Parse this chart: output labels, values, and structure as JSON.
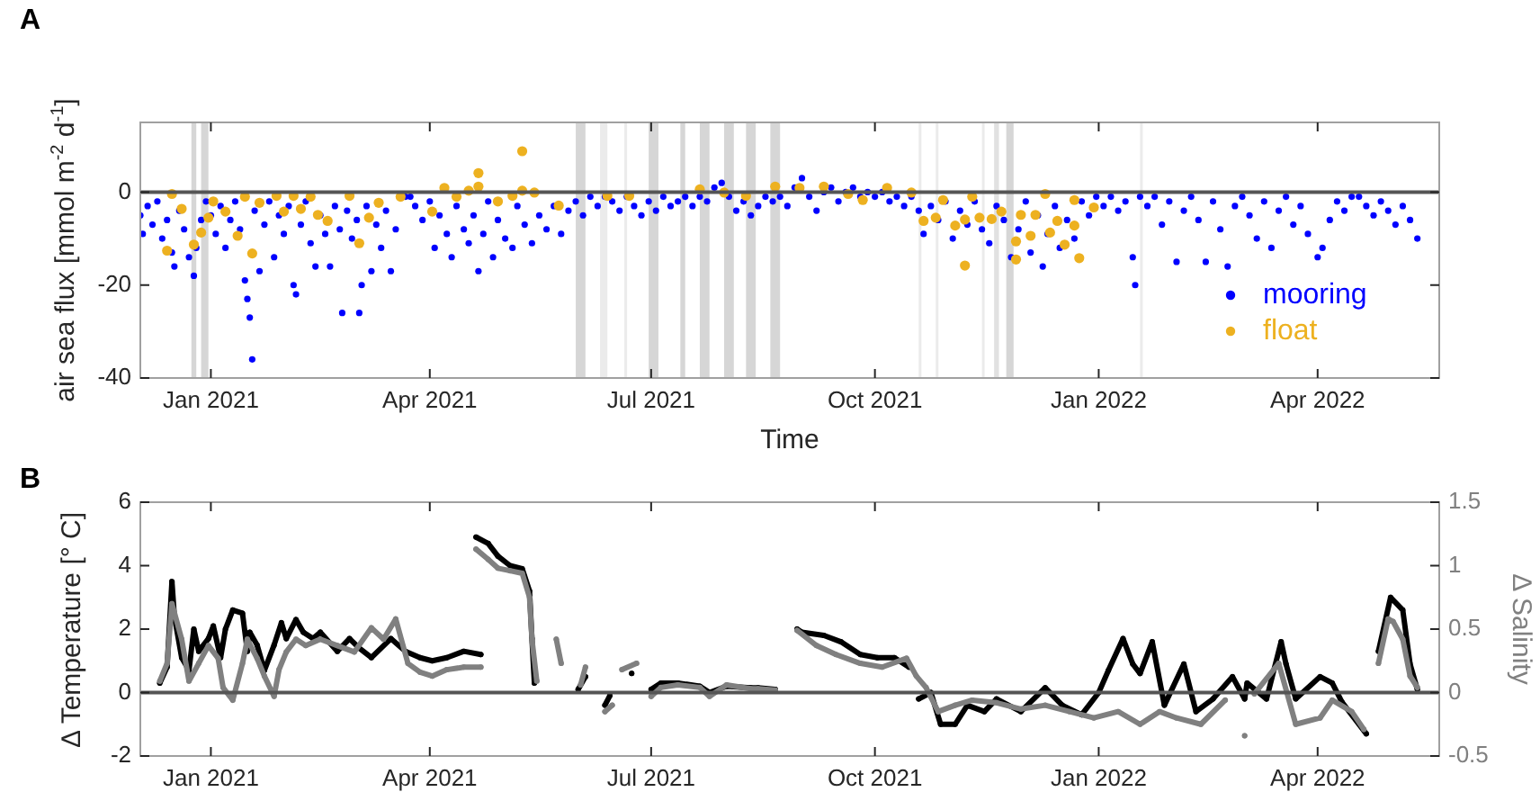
{
  "chart_data": [
    {
      "type": "scatter",
      "title": "A",
      "xlabel": "Time",
      "ylabel": "air sea flux [mmol m$^{-2}$ d$^{-1}$]",
      "xlim": [
        "2020-12-03",
        "2022-05-21"
      ],
      "ylim": [
        -40,
        15
      ],
      "xticks": [
        {
          "value": "2021-01-01",
          "label": "Jan 2021"
        },
        {
          "value": "2021-04-01",
          "label": "Apr 2021"
        },
        {
          "value": "2021-07-01",
          "label": "Jul 2021"
        },
        {
          "value": "2021-10-01",
          "label": "Oct 2021"
        },
        {
          "value": "2022-01-01",
          "label": "Jan 2022"
        },
        {
          "value": "2022-04-01",
          "label": "Apr 2022"
        }
      ],
      "yticks": [
        -40,
        -20,
        0
      ],
      "legend": "bottom right",
      "marker": "circle",
      "ref_lines": [
        {
          "axis": "y",
          "value": 0,
          "color": "#555555"
        }
      ],
      "bands": [
        {
          "axis": "x",
          "from": "2020-12-24",
          "to": "2020-12-26",
          "color": "#cccccc"
        },
        {
          "axis": "x",
          "from": "2020-12-28",
          "to": "2020-12-31",
          "color": "#cccccc"
        },
        {
          "axis": "x",
          "from": "2021-05-31",
          "to": "2021-06-04",
          "color": "#cccccc"
        },
        {
          "axis": "x",
          "from": "2021-06-10",
          "to": "2021-06-13",
          "color": "#e6e6e6"
        },
        {
          "axis": "x",
          "from": "2021-06-20",
          "to": "2021-06-21",
          "color": "#e6e6e6"
        },
        {
          "axis": "x",
          "from": "2021-06-30",
          "to": "2021-07-04",
          "color": "#cccccc"
        },
        {
          "axis": "x",
          "from": "2021-07-13",
          "to": "2021-07-15",
          "color": "#cccccc"
        },
        {
          "axis": "x",
          "from": "2021-07-21",
          "to": "2021-07-25",
          "color": "#cccccc"
        },
        {
          "axis": "x",
          "from": "2021-07-31",
          "to": "2021-08-04",
          "color": "#cccccc"
        },
        {
          "axis": "x",
          "from": "2021-08-09",
          "to": "2021-08-13",
          "color": "#cccccc"
        },
        {
          "axis": "x",
          "from": "2021-08-19",
          "to": "2021-08-23",
          "color": "#cccccc"
        },
        {
          "axis": "x",
          "from": "2021-10-19",
          "to": "2021-10-20",
          "color": "#e6e6e6"
        },
        {
          "axis": "x",
          "from": "2021-10-26",
          "to": "2021-10-27",
          "color": "#e6e6e6"
        },
        {
          "axis": "x",
          "from": "2021-11-14",
          "to": "2021-11-15",
          "color": "#e6e6e6"
        },
        {
          "axis": "x",
          "from": "2021-11-19",
          "to": "2021-11-21",
          "color": "#d9d9d9"
        },
        {
          "axis": "x",
          "from": "2021-11-24",
          "to": "2021-11-27",
          "color": "#cccccc"
        },
        {
          "axis": "x",
          "from": "2022-01-18",
          "to": "2022-01-19",
          "color": "#e6e6e6"
        }
      ],
      "series": [
        {
          "name": "mooring",
          "color": "#0000ff",
          "x": [
            "2020-12-03",
            "2020-12-04",
            "2020-12-06",
            "2020-12-08",
            "2020-12-10",
            "2020-12-12",
            "2020-12-14",
            "2020-12-16",
            "2020-12-17",
            "2020-12-19",
            "2020-12-21",
            "2020-12-23",
            "2020-12-25",
            "2020-12-26",
            "2020-12-28",
            "2020-12-30",
            "2021-01-01",
            "2021-01-03",
            "2021-01-05",
            "2021-01-07",
            "2021-01-09",
            "2021-01-11",
            "2021-01-13",
            "2021-01-15",
            "2021-01-16",
            "2021-01-17",
            "2021-01-18",
            "2021-01-19",
            "2021-01-21",
            "2021-01-23",
            "2021-01-25",
            "2021-01-27",
            "2021-01-29",
            "2021-01-31",
            "2021-02-02",
            "2021-02-04",
            "2021-02-05",
            "2021-02-07",
            "2021-02-09",
            "2021-02-11",
            "2021-02-13",
            "2021-02-15",
            "2021-02-17",
            "2021-02-19",
            "2021-02-21",
            "2021-02-23",
            "2021-02-24",
            "2021-02-26",
            "2021-02-28",
            "2021-03-02",
            "2021-03-03",
            "2021-03-04",
            "2021-03-06",
            "2021-03-08",
            "2021-03-10",
            "2021-03-12",
            "2021-03-14",
            "2021-03-16",
            "2021-03-18",
            "2021-03-22",
            "2021-03-24",
            "2021-03-26",
            "2021-03-29",
            "2021-04-01",
            "2021-04-03",
            "2021-04-05",
            "2021-04-08",
            "2021-04-10",
            "2021-04-12",
            "2021-04-15",
            "2021-04-17",
            "2021-04-19",
            "2021-04-21",
            "2021-04-23",
            "2021-04-25",
            "2021-04-27",
            "2021-04-29",
            "2021-05-02",
            "2021-05-05",
            "2021-05-07",
            "2021-05-10",
            "2021-05-13",
            "2021-05-16",
            "2021-05-19",
            "2021-05-22",
            "2021-05-25",
            "2021-05-28",
            "2021-05-31",
            "2021-06-03",
            "2021-06-06",
            "2021-06-09",
            "2021-06-12",
            "2021-06-15",
            "2021-06-18",
            "2021-06-21",
            "2021-06-24",
            "2021-06-27",
            "2021-06-30",
            "2021-07-03",
            "2021-07-06",
            "2021-07-09",
            "2021-07-12",
            "2021-07-15",
            "2021-07-18",
            "2021-07-21",
            "2021-07-24",
            "2021-07-27",
            "2021-07-30",
            "2021-08-02",
            "2021-08-05",
            "2021-08-08",
            "2021-08-11",
            "2021-08-14",
            "2021-08-17",
            "2021-08-20",
            "2021-08-23",
            "2021-08-26",
            "2021-08-29",
            "2021-09-01",
            "2021-09-04",
            "2021-09-07",
            "2021-09-10",
            "2021-09-13",
            "2021-09-16",
            "2021-09-19",
            "2021-09-22",
            "2021-09-25",
            "2021-09-28",
            "2021-10-01",
            "2021-10-04",
            "2021-10-07",
            "2021-10-10",
            "2021-10-13",
            "2021-10-16",
            "2021-10-19",
            "2021-10-21",
            "2021-10-24",
            "2021-10-27",
            "2021-10-30",
            "2021-11-02",
            "2021-11-05",
            "2021-11-08",
            "2021-11-11",
            "2021-11-14",
            "2021-11-17",
            "2021-11-20",
            "2021-11-23",
            "2021-11-26",
            "2021-11-29",
            "2021-12-02",
            "2021-12-04",
            "2021-12-07",
            "2021-12-09",
            "2021-12-11",
            "2021-12-14",
            "2021-12-16",
            "2021-12-19",
            "2021-12-22",
            "2021-12-25",
            "2021-12-28",
            "2021-12-31",
            "2022-01-03",
            "2022-01-06",
            "2022-01-09",
            "2022-01-12",
            "2022-01-15",
            "2022-01-16",
            "2022-01-18",
            "2022-01-21",
            "2022-01-24",
            "2022-01-27",
            "2022-01-30",
            "2022-02-02",
            "2022-02-05",
            "2022-02-08",
            "2022-02-11",
            "2022-02-14",
            "2022-02-17",
            "2022-02-20",
            "2022-02-23",
            "2022-02-26",
            "2022-03-01",
            "2022-03-04",
            "2022-03-07",
            "2022-03-10",
            "2022-03-13",
            "2022-03-16",
            "2022-03-19",
            "2022-03-22",
            "2022-03-25",
            "2022-03-28",
            "2022-04-01",
            "2022-04-03",
            "2022-04-06",
            "2022-04-09",
            "2022-04-12",
            "2022-04-15",
            "2022-04-18",
            "2022-04-21",
            "2022-04-24",
            "2022-04-27",
            "2022-04-30",
            "2022-05-03",
            "2022-05-06",
            "2022-05-09",
            "2022-05-12"
          ],
          "values": [
            -5,
            -9,
            -3,
            -7,
            -2,
            -10,
            -6,
            -13,
            -16,
            -4,
            -8,
            -14,
            -18,
            -12,
            -6,
            -2,
            -5,
            -9,
            -3,
            -12,
            -6,
            -2,
            -8,
            -19,
            -23,
            -27,
            -36,
            -4,
            -17,
            -7,
            -2,
            -14,
            -5,
            -9,
            -3,
            -20,
            -22,
            -7,
            -2,
            -11,
            -16,
            -5,
            -9,
            -16,
            -3,
            -8,
            -26,
            -4,
            -10,
            -6,
            -26,
            -20,
            -3,
            -17,
            -7,
            -12,
            -4,
            -17,
            -8,
            -1,
            -1,
            -3,
            -6,
            -2,
            -12,
            -5,
            -9,
            -14,
            -3,
            -8,
            -11,
            -5,
            -17,
            -9,
            -2,
            -14,
            -6,
            -10,
            -12,
            -3,
            -7,
            -11,
            -5,
            -8,
            -3,
            -9,
            -4,
            -2,
            -5,
            -1,
            -3,
            -1,
            -2,
            -4,
            -1,
            -3,
            -5,
            -2,
            -4,
            -1,
            -3,
            -2,
            -1,
            -3,
            -1,
            -2,
            1,
            2,
            -1,
            -4,
            -2,
            -5,
            -3,
            -1,
            -2,
            -1,
            -3,
            1,
            3,
            -1,
            -4,
            0,
            1,
            -2,
            0,
            1,
            -1,
            0,
            -1,
            0,
            -2,
            -1,
            -3,
            -1,
            -4,
            -9,
            -3,
            -6,
            -2,
            -10,
            -4,
            -7,
            -2,
            -8,
            -11,
            -3,
            -6,
            -14,
            -8,
            -2,
            -13,
            -5,
            -16,
            -9,
            -3,
            -12,
            -6,
            -10,
            -2,
            -5,
            -1,
            -3,
            -1,
            -4,
            -2,
            -14,
            -20,
            -1,
            -3,
            -1,
            -7,
            -2,
            -15,
            -4,
            -1,
            -6,
            -15,
            -2,
            -8,
            -16,
            -3,
            -1,
            -5,
            -10,
            -2,
            -12,
            -4,
            -1,
            -7,
            -3,
            -9,
            -14,
            -12,
            -6,
            -2,
            -4,
            -1,
            -1,
            -3,
            -5,
            -2,
            -4,
            -7,
            -3,
            -6,
            -10
          ]
        },
        {
          "name": "float",
          "color": "#edb120",
          "x": [
            "2020-12-14",
            "2020-12-16",
            "2020-12-20",
            "2020-12-25",
            "2020-12-28",
            "2020-12-31",
            "2021-01-02",
            "2021-01-07",
            "2021-01-12",
            "2021-01-15",
            "2021-01-18",
            "2021-01-21",
            "2021-01-28",
            "2021-01-31",
            "2021-02-04",
            "2021-02-07",
            "2021-02-11",
            "2021-02-14",
            "2021-02-18",
            "2021-02-27",
            "2021-03-03",
            "2021-03-07",
            "2021-03-11",
            "2021-03-20",
            "2021-04-02",
            "2021-04-07",
            "2021-04-12",
            "2021-04-17",
            "2021-04-21",
            "2021-04-21",
            "2021-04-29",
            "2021-05-05",
            "2021-05-09",
            "2021-05-09",
            "2021-05-14",
            "2021-05-24",
            "2021-06-13",
            "2021-06-22",
            "2021-07-21",
            "2021-07-31",
            "2021-08-09",
            "2021-08-21",
            "2021-08-31",
            "2021-09-10",
            "2021-09-20",
            "2021-09-26",
            "2021-10-06",
            "2021-10-16",
            "2021-10-21",
            "2021-10-26",
            "2021-10-29",
            "2021-11-03",
            "2021-11-07",
            "2021-11-07",
            "2021-11-10",
            "2021-11-13",
            "2021-11-18",
            "2021-11-22",
            "2021-11-28",
            "2021-11-28",
            "2021-11-30",
            "2021-12-04",
            "2021-12-06",
            "2021-12-10",
            "2021-12-12",
            "2021-12-15",
            "2021-12-18",
            "2021-12-22",
            "2021-12-22",
            "2021-12-24",
            "2021-12-30"
          ],
          "values": [
            -12.6,
            -0.4,
            -3.6,
            -11.3,
            -8.7,
            -5.5,
            -2,
            -4.2,
            -9.4,
            -1,
            -13.2,
            -2.3,
            -0.8,
            -4.2,
            -0.8,
            -3.6,
            -1,
            -4.9,
            -6.2,
            -0.8,
            -11,
            -5.5,
            -2.3,
            -1,
            -4.2,
            0.9,
            -1,
            0.3,
            4.1,
            1.2,
            -2,
            -0.8,
            8.8,
            0.3,
            -0.1,
            -2.9,
            -0.8,
            -0.8,
            0.6,
            -0.1,
            -0.8,
            1.2,
            0.9,
            1.2,
            -0.4,
            -1.7,
            0.9,
            -0.1,
            -6.2,
            -5.5,
            -1.7,
            -7.2,
            -15.8,
            -5.9,
            -1,
            -5.5,
            -5.8,
            -4.2,
            -10.6,
            -14.5,
            -4.9,
            -9.4,
            -4.9,
            -0.4,
            -8.7,
            -6.2,
            -11.3,
            -1.7,
            -7.2,
            -14.2,
            -3.3
          ]
        }
      ]
    },
    {
      "type": "line",
      "title": "B",
      "ylabel": "Δ Temperature [° C]",
      "y2label": "Δ Salinity",
      "xlim": [
        "2020-12-03",
        "2022-05-21"
      ],
      "ylim": [
        -2,
        6
      ],
      "y2lim": [
        -0.5,
        1.5
      ],
      "xticks": [
        {
          "value": "2021-01-01",
          "label": "Jan 2021"
        },
        {
          "value": "2021-04-01",
          "label": "Apr 2021"
        },
        {
          "value": "2021-07-01",
          "label": "Jul 2021"
        },
        {
          "value": "2021-10-01",
          "label": "Oct 2021"
        },
        {
          "value": "2022-01-01",
          "label": "Jan 2022"
        },
        {
          "value": "2022-04-01",
          "label": "Apr 2022"
        }
      ],
      "yticks": [
        -2,
        0,
        2,
        4,
        6
      ],
      "y2ticks": [
        -0.5,
        0,
        0.5,
        1,
        1.5
      ],
      "marker": "circle",
      "line_style": "solid",
      "ref_lines": [
        {
          "axis": "y",
          "value": 0,
          "color": "#555555"
        }
      ],
      "series": [
        {
          "color": "#000000",
          "x": [
            "2020-12-11",
            "2020-12-14",
            "2020-12-16",
            "2020-12-17",
            "2020-12-20",
            "2020-12-23",
            "2020-12-25",
            "2020-12-27",
            "2020-12-31",
            "2021-01-02",
            "2021-01-05",
            "2021-01-07",
            "2021-01-10",
            "2021-01-14",
            "2021-01-16",
            "2021-01-17",
            "2021-01-20",
            "2021-01-23",
            "2021-01-27",
            "2021-01-30",
            "2021-02-01",
            "2021-02-05",
            "2021-02-08",
            "2021-02-12",
            "2021-02-15",
            "2021-02-22",
            "2021-02-27",
            "2021-03-03",
            "2021-03-08",
            "2021-03-16",
            "2021-03-22",
            "2021-03-28",
            "2021-04-02",
            "2021-04-08",
            "2021-04-15",
            "2021-04-22",
            "2021-04-21",
            "2021-04-20",
            "2021-04-25",
            "2021-04-29",
            "2021-05-04",
            "2021-05-09",
            "2021-05-12",
            "2021-05-13",
            "2021-05-14",
            "2021-05-20",
            "2021-06-01",
            "2021-06-04",
            "2021-06-08",
            "2021-06-12",
            "2021-06-14",
            "2021-06-18",
            "2021-06-23",
            "2021-06-27",
            "2021-07-01",
            "2021-07-05",
            "2021-07-12",
            "2021-07-21",
            "2021-07-25",
            "2021-08-01",
            "2021-08-11",
            "2021-08-14",
            "2021-08-21",
            "2021-08-25",
            "2021-08-30",
            "2021-09-01",
            "2021-09-10",
            "2021-09-17",
            "2021-09-25",
            "2021-10-02",
            "2021-10-09",
            "2021-10-15",
            "2021-10-17",
            "2021-10-19",
            "2021-10-24",
            "2021-10-28",
            "2021-11-03",
            "2021-11-08",
            "2021-11-15",
            "2021-11-20",
            "2021-11-30",
            "2021-12-10",
            "2021-12-17",
            "2021-12-25",
            "2022-01-01",
            "2022-01-05",
            "2022-01-11",
            "2022-01-15",
            "2022-01-18",
            "2022-01-23",
            "2022-01-28",
            "2022-02-05",
            "2022-02-10",
            "2022-02-17",
            "2022-02-25",
            "2022-03-02",
            "2022-03-03",
            "2022-03-11",
            "2022-03-17",
            "2022-03-19",
            "2022-03-23",
            "2022-04-02",
            "2022-04-07",
            "2022-04-11",
            "2022-04-21",
            "2022-04-23",
            "2022-04-26",
            "2022-05-01",
            "2022-05-06",
            "2022-05-09",
            "2022-05-12"
          ],
          "values": [
            0.3,
            0.8,
            3.5,
            2.4,
            1.1,
            0.7,
            2,
            1.3,
            1.7,
            2.1,
            1.1,
            2,
            2.6,
            2.5,
            1.3,
            1.9,
            1.5,
            0.7,
            1.5,
            2.2,
            1.7,
            2.3,
            1.9,
            1.7,
            1.9,
            1.3,
            1.7,
            1.4,
            1.1,
            1.7,
            1.3,
            1.1,
            1,
            1.1,
            1.3,
            1.2,
            null,
            4.9,
            4.7,
            4.3,
            4,
            3.9,
            3.2,
            1.7,
            0.3,
            null,
            0.1,
            0.5,
            null,
            -0.4,
            -0.1,
            null,
            0.6,
            null,
            0.1,
            0.3,
            0.3,
            0.2,
            0,
            0.2,
            0.15,
            0.15,
            0.1,
            null,
            2,
            1.9,
            1.8,
            1.6,
            1.2,
            1.1,
            1.1,
            0.8,
            null,
            -0.2,
            0,
            -1,
            -1,
            -0.4,
            -0.6,
            -0.2,
            -0.6,
            0.15,
            -0.4,
            -0.7,
            0,
            0.7,
            1.7,
            0.9,
            0.6,
            1.6,
            -0.4,
            0.9,
            -0.6,
            -0.2,
            0.5,
            -0.2,
            0.3,
            -0.2,
            1.6,
            0.9,
            -0.2,
            0.5,
            0.3,
            -0.3,
            -1.3,
            null,
            1.3,
            3,
            2.6,
            0.9,
            0.1
          ]
        },
        {
          "color": "#808080",
          "axis": "y2",
          "x": [
            "2020-12-11",
            "2020-12-14",
            "2020-12-16",
            "2020-12-20",
            "2020-12-23",
            "2020-12-27",
            "2020-12-31",
            "2021-01-04",
            "2021-01-06",
            "2021-01-10",
            "2021-01-14",
            "2021-01-16",
            "2021-01-20",
            "2021-01-23",
            "2021-01-27",
            "2021-01-29",
            "2021-02-01",
            "2021-02-05",
            "2021-02-09",
            "2021-02-15",
            "2021-02-22",
            "2021-03-01",
            "2021-03-08",
            "2021-03-13",
            "2021-03-18",
            "2021-03-23",
            "2021-03-28",
            "2021-04-02",
            "2021-04-08",
            "2021-04-15",
            "2021-04-22",
            "2021-04-21",
            "2021-04-20",
            "2021-04-25",
            "2021-04-29",
            "2021-05-04",
            "2021-05-09",
            "2021-05-12",
            "2021-05-13",
            "2021-05-15",
            "2021-05-19",
            "2021-05-23",
            "2021-05-25",
            "2021-05-28",
            "2021-06-02",
            "2021-06-04",
            "2021-06-08",
            "2021-06-12",
            "2021-06-15",
            "2021-06-17",
            "2021-06-19",
            "2021-06-25",
            "2021-06-28",
            "2021-07-01",
            "2021-07-05",
            "2021-07-12",
            "2021-07-21",
            "2021-07-25",
            "2021-08-01",
            "2021-08-11",
            "2021-08-14",
            "2021-08-21",
            "2021-08-25",
            "2021-08-30",
            "2021-09-07",
            "2021-09-15",
            "2021-09-25",
            "2021-10-04",
            "2021-10-14",
            "2021-10-18",
            "2021-10-22",
            "2021-10-27",
            "2021-11-03",
            "2021-11-10",
            "2021-11-20",
            "2021-11-30",
            "2021-12-10",
            "2021-12-20",
            "2021-12-30",
            "2022-01-09",
            "2022-01-18",
            "2022-01-26",
            "2022-02-02",
            "2022-02-12",
            "2022-02-22",
            "2022-02-25",
            "2022-03-02",
            "2022-03-04",
            "2022-03-06",
            "2022-03-16",
            "2022-03-23",
            "2022-04-02",
            "2022-04-07",
            "2022-04-15",
            "2022-04-20",
            "2022-04-23",
            "2022-04-26",
            "2022-04-30",
            "2022-05-02",
            "2022-05-06",
            "2022-05-09",
            "2022-05-12"
          ],
          "values": [
            0.09,
            0.23,
            0.7,
            0.42,
            0.09,
            0.23,
            0.37,
            0.27,
            0.04,
            -0.06,
            0.23,
            0.42,
            0.27,
            0.13,
            -0.03,
            0.18,
            0.32,
            0.42,
            0.37,
            0.42,
            0.37,
            0.32,
            0.51,
            0.42,
            0.58,
            0.23,
            0.16,
            0.13,
            0.18,
            0.2,
            0.2,
            null,
            1.13,
            1.05,
            0.98,
            0.96,
            0.94,
            0.75,
            0.42,
            0.09,
            null,
            0.42,
            0.23,
            null,
            0.06,
            0.2,
            null,
            -0.15,
            -0.1,
            null,
            0.18,
            0.23,
            null,
            -0.03,
            0.04,
            0.06,
            0.04,
            -0.03,
            0.06,
            0.03,
            0.03,
            0.02,
            null,
            0.49,
            0.37,
            0.3,
            0.23,
            0.2,
            0.27,
            0.13,
            0.04,
            -0.15,
            -0.1,
            -0.06,
            -0.08,
            -0.13,
            -0.1,
            -0.15,
            -0.2,
            -0.15,
            -0.25,
            -0.15,
            -0.2,
            -0.25,
            -0.06,
            null,
            -0.34,
            null,
            -0.01,
            0.23,
            -0.25,
            -0.2,
            -0.06,
            -0.15,
            -0.29,
            null,
            0.23,
            0.58,
            0.56,
            0.42,
            0.13,
            0.04
          ]
        }
      ]
    }
  ]
}
